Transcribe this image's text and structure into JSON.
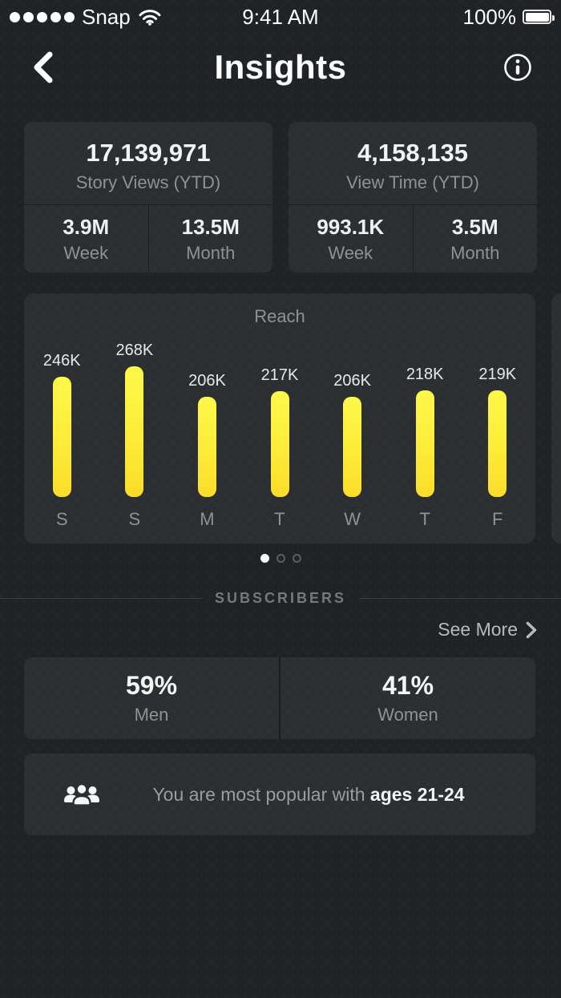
{
  "status_bar": {
    "carrier": "Snap",
    "time": "9:41 AM",
    "battery_percent": "100%"
  },
  "header": {
    "title": "Insights"
  },
  "stat_cards": [
    {
      "value": "17,139,971",
      "label": "Story Views (YTD)",
      "sub": [
        {
          "value": "3.9M",
          "label": "Week"
        },
        {
          "value": "13.5M",
          "label": "Month"
        }
      ]
    },
    {
      "value": "4,158,135",
      "label": "View Time (YTD)",
      "sub": [
        {
          "value": "993.1K",
          "label": "Week"
        },
        {
          "value": "3.5M",
          "label": "Month"
        }
      ]
    }
  ],
  "chart_data": {
    "type": "bar",
    "title": "Reach",
    "categories": [
      "S",
      "S",
      "M",
      "T",
      "W",
      "T",
      "F"
    ],
    "values": [
      246000,
      268000,
      206000,
      217000,
      206000,
      218000,
      219000
    ],
    "value_labels": [
      "246K",
      "268K",
      "206K",
      "217K",
      "206K",
      "218K",
      "219K"
    ],
    "ylim": [
      0,
      268000
    ],
    "grid": false,
    "legend": "none",
    "bar_color_top": "#fdf84b",
    "bar_color_bottom": "#fbdc2a"
  },
  "carousel": {
    "page_count": 3,
    "active_page": 0
  },
  "subscribers": {
    "section_label": "SUBSCRIBERS",
    "see_more_label": "See More",
    "gender": [
      {
        "value": "59%",
        "label": "Men"
      },
      {
        "value": "41%",
        "label": "Women"
      }
    ],
    "popularity_prefix": "You are most popular with ",
    "popularity_highlight": "ages 21-24"
  },
  "colors": {
    "background": "#202326",
    "card": "#2e3134",
    "accent_yellow": "#fde92f",
    "text_primary": "#f4f5f5",
    "text_secondary": "#8d9294"
  }
}
